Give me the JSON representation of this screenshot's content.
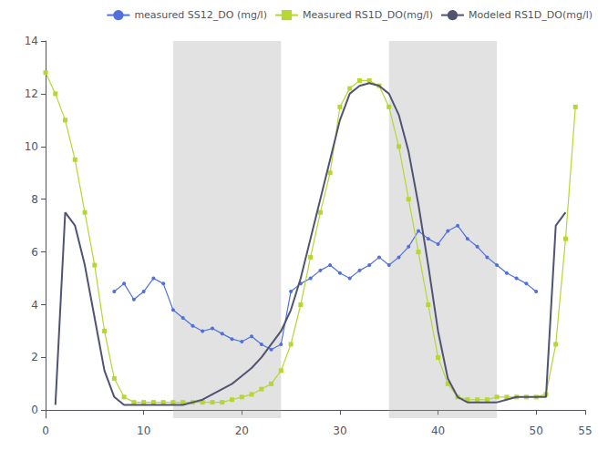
{
  "chart_data": {
    "type": "line",
    "xlim": [
      0,
      55
    ],
    "xticks": [
      0,
      10,
      20,
      30,
      40,
      50
    ],
    "ylim": [
      -0.3,
      14
    ],
    "yticks": [
      0,
      2,
      4,
      6,
      8,
      10,
      12,
      14
    ],
    "grid": false,
    "legend": "upper right",
    "shade_regions": [
      [
        13,
        24
      ],
      [
        35,
        46
      ]
    ],
    "series": [
      {
        "name": "measured SS12_DO (mg/l)",
        "marker": "circle",
        "x": [
          7,
          8,
          9,
          10,
          11,
          12,
          13,
          14,
          15,
          16,
          17,
          18,
          19,
          20,
          21,
          22,
          23,
          24,
          25,
          26,
          27,
          28,
          29,
          30,
          31,
          32,
          33,
          34,
          35,
          36,
          37,
          38,
          39,
          40,
          41,
          42,
          43,
          44,
          45,
          46,
          47,
          48,
          49,
          50
        ],
        "values": [
          4.5,
          4.8,
          4.2,
          4.5,
          5.0,
          4.8,
          3.8,
          3.5,
          3.2,
          3.0,
          3.1,
          2.9,
          2.7,
          2.6,
          2.8,
          2.5,
          2.3,
          2.5,
          4.5,
          4.8,
          5.0,
          5.3,
          5.5,
          5.2,
          5.0,
          5.3,
          5.5,
          5.8,
          5.5,
          5.8,
          6.2,
          6.8,
          6.5,
          6.3,
          6.8,
          7.0,
          6.5,
          6.2,
          5.8,
          5.5,
          5.2,
          5.0,
          4.8,
          4.5
        ]
      },
      {
        "name": "Measured RS1D_DO(mg/l)",
        "marker": "square",
        "x": [
          0,
          1,
          2,
          3,
          4,
          5,
          6,
          7,
          8,
          9,
          10,
          11,
          12,
          13,
          14,
          15,
          16,
          17,
          18,
          19,
          20,
          21,
          22,
          23,
          24,
          25,
          26,
          27,
          28,
          29,
          30,
          31,
          32,
          33,
          34,
          35,
          36,
          37,
          38,
          39,
          40,
          41,
          42,
          43,
          44,
          45,
          46,
          47,
          48,
          49,
          50,
          51,
          52,
          53,
          54
        ],
        "values": [
          12.8,
          12.0,
          11.0,
          9.5,
          7.5,
          5.5,
          3.0,
          1.2,
          0.5,
          0.3,
          0.3,
          0.3,
          0.3,
          0.3,
          0.3,
          0.3,
          0.3,
          0.3,
          0.3,
          0.4,
          0.5,
          0.6,
          0.8,
          1.0,
          1.5,
          2.5,
          4.0,
          5.8,
          7.5,
          9.0,
          11.5,
          12.2,
          12.5,
          12.5,
          12.3,
          11.5,
          10.0,
          8.0,
          6.0,
          4.0,
          2.0,
          1.0,
          0.5,
          0.4,
          0.4,
          0.4,
          0.5,
          0.5,
          0.5,
          0.5,
          0.5,
          0.6,
          2.5,
          6.5,
          11.5
        ]
      },
      {
        "name": "Modeled RS1D_DO(mg/l)",
        "marker": "none",
        "x": [
          1,
          2,
          3,
          4,
          5,
          6,
          7,
          8,
          9,
          10,
          11,
          12,
          13,
          14,
          15,
          16,
          17,
          18,
          19,
          20,
          21,
          22,
          23,
          24,
          25,
          26,
          27,
          28,
          29,
          30,
          31,
          32,
          33,
          34,
          35,
          36,
          37,
          38,
          39,
          40,
          41,
          42,
          43,
          44,
          45,
          46,
          47,
          48,
          49,
          50,
          51,
          52,
          53
        ],
        "values": [
          0.2,
          7.5,
          7.0,
          5.5,
          3.5,
          1.5,
          0.5,
          0.2,
          0.2,
          0.2,
          0.2,
          0.2,
          0.2,
          0.2,
          0.3,
          0.4,
          0.6,
          0.8,
          1.0,
          1.3,
          1.6,
          2.0,
          2.5,
          3.0,
          3.8,
          5.0,
          6.5,
          8.0,
          9.5,
          11.0,
          12.0,
          12.3,
          12.4,
          12.3,
          12.0,
          11.2,
          9.8,
          7.8,
          5.5,
          3.0,
          1.2,
          0.5,
          0.3,
          0.3,
          0.3,
          0.3,
          0.4,
          0.5,
          0.5,
          0.5,
          0.5,
          7.0,
          7.5
        ]
      }
    ]
  }
}
